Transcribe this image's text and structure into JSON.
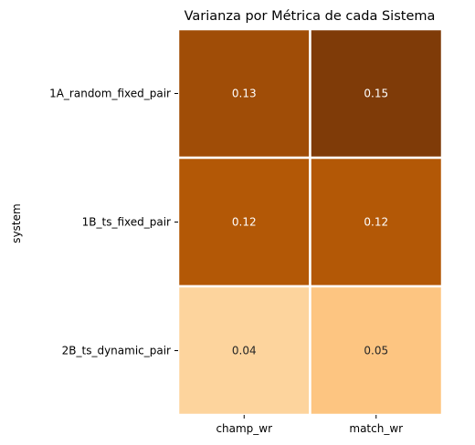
{
  "chart_data": {
    "type": "heatmap",
    "title": "Varianza por Métrica de cada Sistema",
    "ylabel": "system",
    "xlabel": "",
    "x_categories": [
      "champ_wr",
      "match_wr"
    ],
    "y_categories": [
      "1A_random_fixed_pair",
      "1B_ts_fixed_pair",
      "2B_ts_dynamic_pair"
    ],
    "values": [
      [
        0.13,
        0.15
      ],
      [
        0.12,
        0.12
      ],
      [
        0.04,
        0.05
      ]
    ],
    "value_labels": [
      [
        "0.13",
        "0.15"
      ],
      [
        "0.12",
        "0.12"
      ],
      [
        "0.04",
        "0.05"
      ]
    ],
    "cell_colors": [
      [
        "#a04d07",
        "#7f3b08"
      ],
      [
        "#b35806",
        "#b35806"
      ],
      [
        "#fdd49d",
        "#fdc581"
      ]
    ],
    "label_colors": [
      [
        "#ffffff",
        "#ffffff"
      ],
      [
        "#ffffff",
        "#ffffff"
      ],
      [
        "#262626",
        "#262626"
      ]
    ],
    "colorbar": false,
    "grid": false
  }
}
